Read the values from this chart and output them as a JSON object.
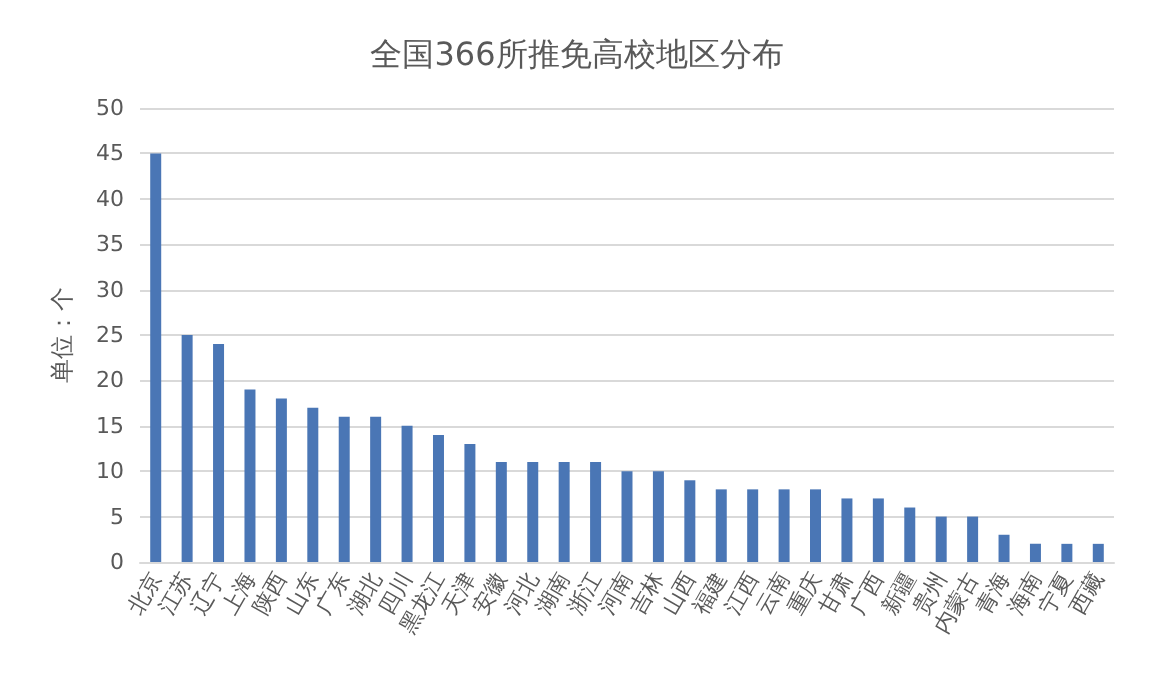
{
  "chart_data": {
    "type": "bar",
    "title": "全国366所推免高校地区分布",
    "ylabel": "单位：个",
    "categories": [
      "北京",
      "江苏",
      "辽宁",
      "上海",
      "陕西",
      "山东",
      "广东",
      "湖北",
      "四川",
      "黑龙江",
      "天津",
      "安徽",
      "河北",
      "湖南",
      "浙江",
      "河南",
      "吉林",
      "山西",
      "福建",
      "江西",
      "云南",
      "重庆",
      "甘肃",
      "广西",
      "新疆",
      "贵州",
      "内蒙古",
      "青海",
      "海南",
      "宁夏",
      "西藏"
    ],
    "values": [
      45,
      25,
      24,
      19,
      18,
      17,
      16,
      16,
      15,
      14,
      13,
      11,
      11,
      11,
      11,
      10,
      10,
      9,
      8,
      8,
      8,
      8,
      7,
      7,
      6,
      5,
      5,
      3,
      2,
      2,
      2
    ],
    "color": "#4a76b5",
    "ylim": [
      0,
      50
    ],
    "yticks": [
      0,
      5,
      10,
      15,
      20,
      25,
      30,
      35,
      40,
      45,
      50
    ],
    "grid": "y"
  }
}
